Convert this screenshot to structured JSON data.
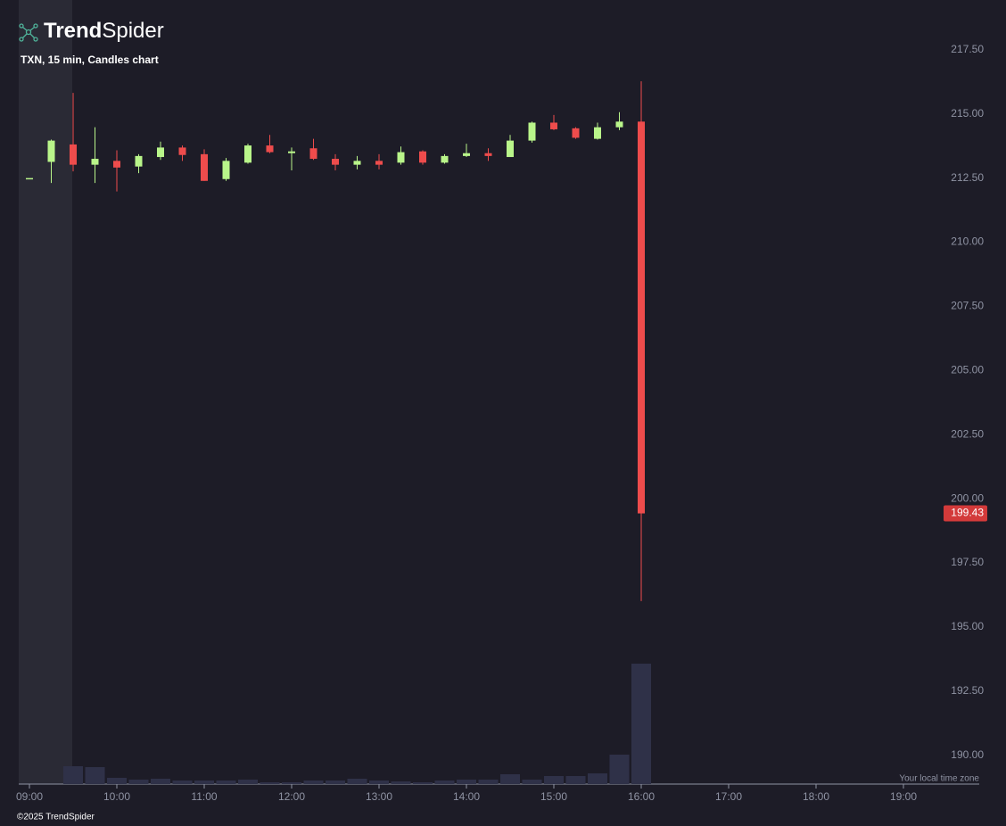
{
  "brand": {
    "bold": "Trend",
    "light": "Spider"
  },
  "footer": "©2025 TrendSpider",
  "chart_data": {
    "type": "candlestick",
    "title": "TXN, 15 min, Candles chart",
    "timezone_note": "Your local time zone",
    "x": [
      "09:00",
      "09:15",
      "09:30",
      "09:45",
      "10:00",
      "10:15",
      "10:30",
      "10:45",
      "11:00",
      "11:15",
      "11:30",
      "11:45",
      "12:00",
      "12:15",
      "12:30",
      "12:45",
      "13:00",
      "13:15",
      "13:30",
      "13:45",
      "14:00",
      "14:15",
      "14:30",
      "14:45",
      "15:00",
      "15:15",
      "15:30",
      "15:45",
      "16:00"
    ],
    "open": [
      212.5,
      213.13,
      213.81,
      213.02,
      213.17,
      212.95,
      213.32,
      213.69,
      213.43,
      212.46,
      213.1,
      213.77,
      213.47,
      213.66,
      213.25,
      213.02,
      213.17,
      213.1,
      213.54,
      213.1,
      213.36,
      213.47,
      213.32,
      213.96,
      214.66,
      214.44,
      214.03,
      214.48,
      214.7
    ],
    "high": [
      212.5,
      214.0,
      215.82,
      214.48,
      213.58,
      213.43,
      213.92,
      213.77,
      213.62,
      213.28,
      213.84,
      214.18,
      213.69,
      214.03,
      213.43,
      213.36,
      213.43,
      213.73,
      213.58,
      213.43,
      213.84,
      213.66,
      214.18,
      214.7,
      214.96,
      214.48,
      214.66,
      215.07,
      216.27
    ],
    "low": [
      212.5,
      212.31,
      212.76,
      212.31,
      211.98,
      212.69,
      213.21,
      213.17,
      212.39,
      212.39,
      213.06,
      213.47,
      212.8,
      213.21,
      212.8,
      212.84,
      212.84,
      213.02,
      213.02,
      213.06,
      213.32,
      213.17,
      213.32,
      213.88,
      214.37,
      214.03,
      214.0,
      214.37,
      196.01
    ],
    "close": [
      212.5,
      213.96,
      213.02,
      213.25,
      212.91,
      213.36,
      213.69,
      213.4,
      212.39,
      213.17,
      213.77,
      213.51,
      213.54,
      213.25,
      213.02,
      213.17,
      213.02,
      213.51,
      213.1,
      213.36,
      213.47,
      213.36,
      213.96,
      214.66,
      214.4,
      214.07,
      214.48,
      214.7,
      199.43
    ],
    "volume": [
      null,
      null,
      20,
      19,
      7,
      5,
      6,
      4,
      4,
      4,
      5,
      2,
      2,
      4,
      4,
      6,
      4,
      3,
      2,
      4,
      5,
      5,
      11,
      5,
      9,
      9,
      12,
      33,
      135
    ],
    "up_color": "#b9f58a",
    "down_color": "#ee4c4c",
    "volume_color": "#2f3148",
    "last_price_color": "#d33a3a",
    "ylim": [
      188.88,
      219.44
    ],
    "yticks": [
      {
        "value": 190,
        "label": "190.00"
      },
      {
        "value": 192.5,
        "label": "192.50"
      },
      {
        "value": 195,
        "label": "195.00"
      },
      {
        "value": 197.5,
        "label": "197.50"
      },
      {
        "value": 200,
        "label": "200.00"
      },
      {
        "value": 202.5,
        "label": "202.50"
      },
      {
        "value": 205,
        "label": "205.00"
      },
      {
        "value": 207.5,
        "label": "207.50"
      },
      {
        "value": 210,
        "label": "210.00"
      },
      {
        "value": 212.5,
        "label": "212.50"
      },
      {
        "value": 215,
        "label": "215.00"
      },
      {
        "value": 217.5,
        "label": "217.50"
      }
    ],
    "xticks": [
      "09:00",
      "10:00",
      "11:00",
      "12:00",
      "13:00",
      "14:00",
      "15:00",
      "16:00",
      "17:00",
      "18:00",
      "19:00"
    ]
  }
}
